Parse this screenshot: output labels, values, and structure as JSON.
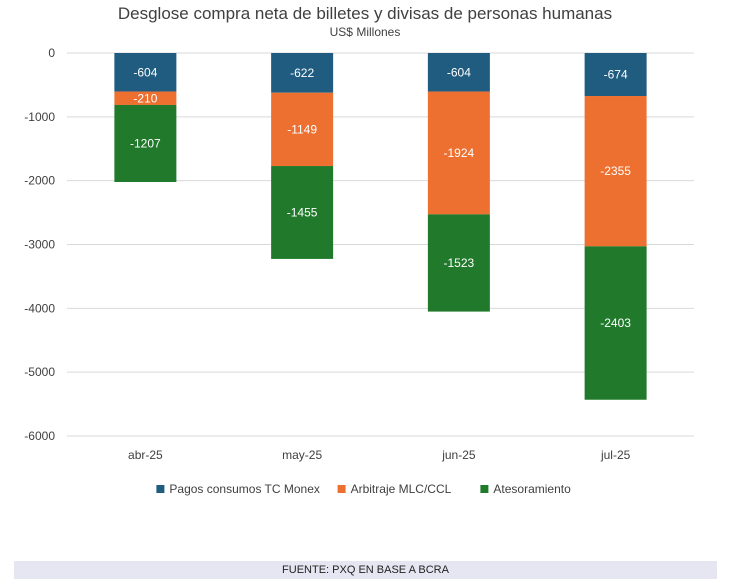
{
  "chart_data": {
    "type": "bar",
    "stacked": true,
    "title": "Desglose compra neta de billetes y divisas de personas humanas",
    "subtitle": "US$ Millones",
    "categories": [
      "abr-25",
      "may-25",
      "jun-25",
      "jul-25"
    ],
    "series": [
      {
        "name": "Pagos consumos TC Monex",
        "color": "#1f5c80",
        "values": [
          -604,
          -622,
          -604,
          -674
        ]
      },
      {
        "name": "Arbitraje MLC/CCL",
        "color": "#ed7030",
        "values": [
          -210,
          -1149,
          -1924,
          -2355
        ]
      },
      {
        "name": "Atesoramiento",
        "color": "#217a2c",
        "values": [
          -1207,
          -1455,
          -1523,
          -2403
        ]
      }
    ],
    "ylim": [
      -6000,
      0
    ],
    "yticks": [
      0,
      -1000,
      -2000,
      -3000,
      -4000,
      -5000,
      -6000
    ],
    "ytick_labels": [
      "0",
      "-1000",
      "-2000",
      "-3000",
      "-4000",
      "-5000",
      "-6000"
    ],
    "grid": true,
    "legend_position": "bottom",
    "data_label_color": "#ffffff"
  },
  "footer": {
    "source": "FUENTE: PXQ EN BASE A BCRA"
  }
}
